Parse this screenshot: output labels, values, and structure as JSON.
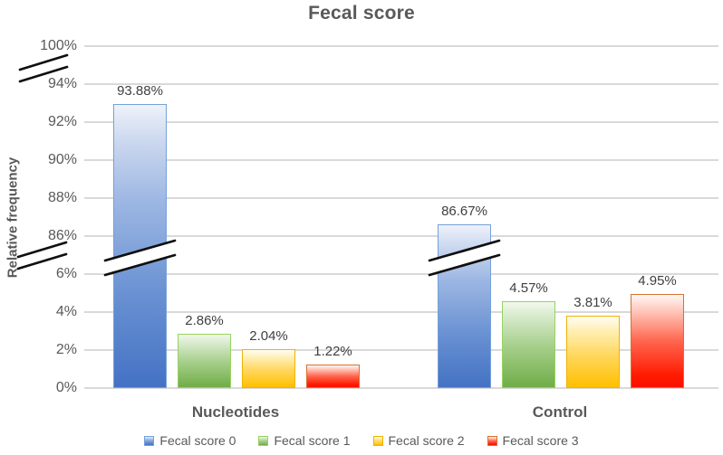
{
  "title": "Fecal score",
  "y_axis_label": "Relative frequency",
  "chart_data": {
    "type": "bar",
    "title": "Fecal score",
    "xlabel": "",
    "ylabel": "Relative frequency",
    "categories": [
      "Nucleotides",
      "Control"
    ],
    "series": [
      {
        "name": "Fecal score 0",
        "color": "#4472c4",
        "values": [
          93.88,
          86.67
        ],
        "labels": [
          "93.88%",
          "86.67%"
        ]
      },
      {
        "name": "Fecal score 1",
        "color": "#70ad47",
        "values": [
          2.86,
          4.57
        ],
        "labels": [
          "2.86%",
          "4.57%"
        ]
      },
      {
        "name": "Fecal score 2",
        "color": "#ffc000",
        "values": [
          2.04,
          3.81
        ],
        "labels": [
          "2.04%",
          "3.81%"
        ]
      },
      {
        "name": "Fecal score 3",
        "color": "#ff0000",
        "values": [
          1.22,
          4.95
        ],
        "labels": [
          "1.22%",
          "4.95%"
        ]
      }
    ],
    "y_tick_labels": [
      "100%",
      "94%",
      "92%",
      "90%",
      "88%",
      "86%",
      "6%",
      "4%",
      "2%",
      "0%"
    ],
    "ylim": [
      0,
      100
    ],
    "axis_break": true,
    "broken_segments": [
      [
        0,
        6
      ],
      [
        86,
        100
      ]
    ],
    "tick_step_percent": 2,
    "grid": true,
    "gridline_color": "#d9d9d9",
    "axis_text_color": "#595959",
    "value_label_color": "#404040",
    "break_mark_color": "#0f0f0f",
    "legend_position": "bottom"
  }
}
